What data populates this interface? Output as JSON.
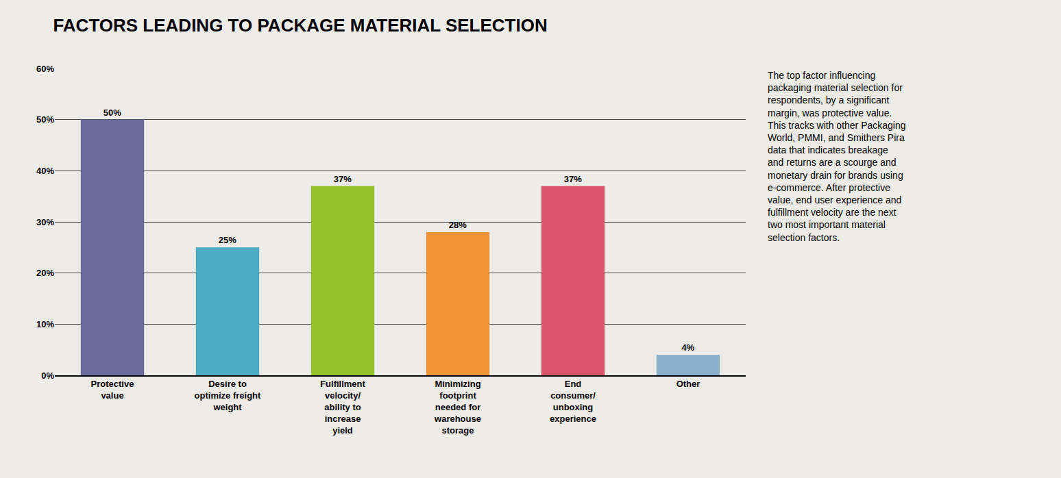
{
  "chart_data": {
    "type": "bar",
    "title": "FACTORS LEADING TO PACKAGE MATERIAL SELECTION",
    "categories": [
      "Protective\nvalue",
      "Desire to\noptimize freight\nweight",
      "Fulfillment\nvelocity/\nability to\nincrease\nyield",
      "Minimizing\nfootprint\nneeded for\nwarehouse\nstorage",
      "End\nconsumer/\nunboxing\nexperience",
      "Other"
    ],
    "values": [
      50,
      25,
      37,
      28,
      37,
      4
    ],
    "value_labels": [
      "50%",
      "25%",
      "37%",
      "28%",
      "37%",
      "4%"
    ],
    "data_labels": true,
    "colors": [
      "#6b6b9e",
      "#4bacc6",
      "#93c12a",
      "#f0943a",
      "#d9536a",
      "#8aafc8"
    ],
    "ylim": [
      0,
      60
    ],
    "yticks": [
      {
        "value": 0,
        "label": "0%"
      },
      {
        "value": 10,
        "label": "10%"
      },
      {
        "value": 20,
        "label": "20%"
      },
      {
        "value": 30,
        "label": "30%"
      },
      {
        "value": 40,
        "label": "40%"
      },
      {
        "value": 50,
        "label": "50%"
      },
      {
        "value": 60,
        "label": "60%"
      }
    ],
    "grid": true,
    "annotations": [
      "The top factor influencing\npackaging material selection for\nrespondents, by a significant\nmargin, was protective value.\nThis tracks with other Packaging\nWorld, PMMI, and Smithers Pira\ndata that indicates breakage\nand returns are a scourge and\nmonetary drain for brands using\ne-commerce. After protective\nvalue, end user experience and\nfulfillment velocity are the next\ntwo most important material\nselection factors."
    ]
  }
}
